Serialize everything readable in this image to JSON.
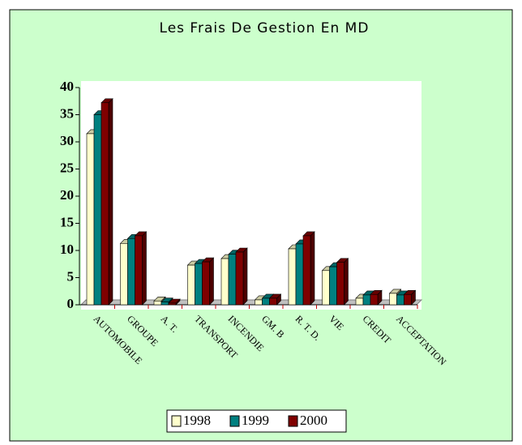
{
  "chart_data": {
    "type": "bar3d",
    "title": "Les Frais De Gestion En MD",
    "categories": [
      "AUTOMOBILE",
      "GROUPE",
      "A. T.",
      "TRANSPORT",
      "INCENDIE",
      "GM. B",
      "R. T. D.",
      "VIE",
      "CREDIT",
      "ACCEPTATION"
    ],
    "series": [
      {
        "name": "1998",
        "color": "#ffffcc",
        "values": [
          31.5,
          11.3,
          0.7,
          7.3,
          8.5,
          0.9,
          10.3,
          6.3,
          1.2,
          2.1
        ]
      },
      {
        "name": "1999",
        "color": "#008080",
        "values": [
          35,
          12.2,
          0.5,
          7.6,
          9.3,
          1.2,
          11.2,
          7,
          1.8,
          1.8
        ]
      },
      {
        "name": "2000",
        "color": "#800000",
        "values": [
          37.2,
          12.7,
          0.3,
          7.9,
          9.7,
          1.2,
          12.7,
          7.8,
          1.9,
          1.9
        ]
      }
    ],
    "ylim": [
      0,
      40
    ],
    "yticks": [
      0,
      5,
      10,
      15,
      20,
      25,
      30,
      35,
      40
    ],
    "legend": "bottom"
  }
}
